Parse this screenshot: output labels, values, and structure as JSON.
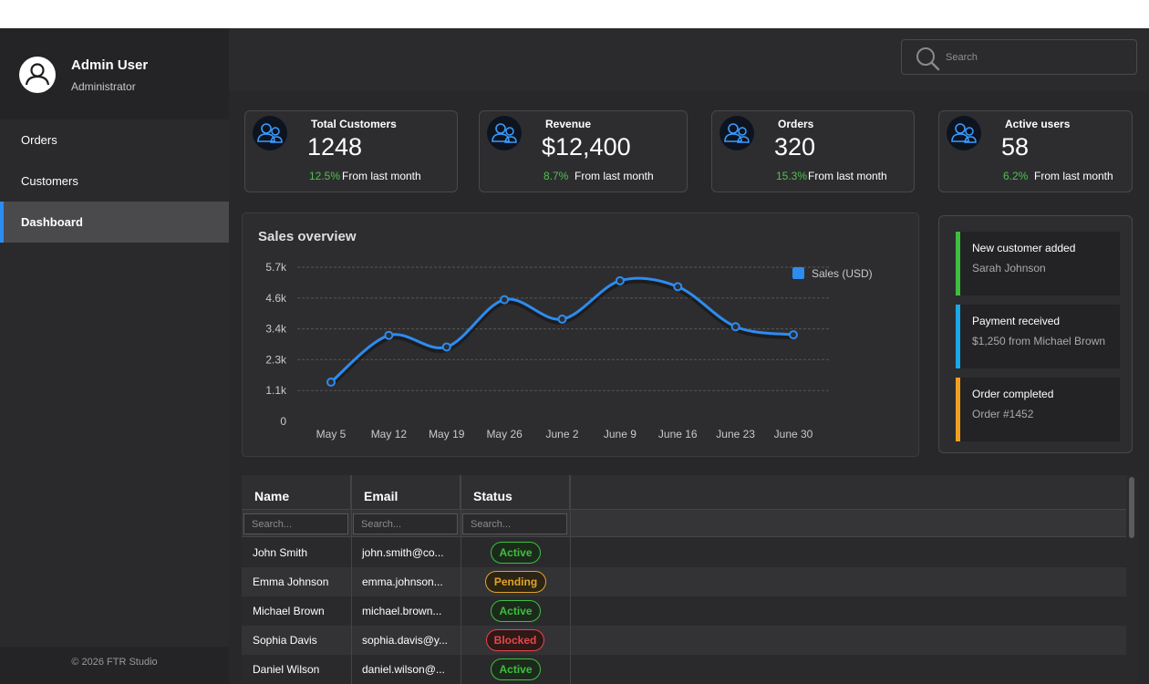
{
  "user": {
    "name": "Admin User",
    "role": "Administrator"
  },
  "nav": [
    {
      "label": "Orders"
    },
    {
      "label": "Customers"
    },
    {
      "label": "Dashboard",
      "active": true
    }
  ],
  "footer": "© 2026 FTR Studio",
  "search": {
    "placeholder": "Search"
  },
  "stats": [
    {
      "title": "Total Customers",
      "value": "1248",
      "change": "12.5%",
      "suffix": "From last month",
      "icon": "users-icon"
    },
    {
      "title": "Revenue",
      "value": "$12,400",
      "change": "8.7%",
      "suffix": "From last month",
      "icon": "users-icon"
    },
    {
      "title": "Orders",
      "value": "320",
      "change": "15.3%",
      "suffix": "From last month",
      "icon": "users-icon"
    },
    {
      "title": "Active users",
      "value": "58",
      "change": "6.2%",
      "suffix": "From last month",
      "icon": "users-icon"
    }
  ],
  "chart_data": {
    "type": "line",
    "title": "Sales overview",
    "categories": [
      "May 5",
      "May 12",
      "May 19",
      "May 26",
      "June 2",
      "June 9",
      "June 16",
      "June 23",
      "June 30"
    ],
    "series": [
      {
        "name": "Sales (USD)",
        "values": [
          1450,
          3180,
          2750,
          4500,
          3780,
          5200,
          4980,
          3500,
          3200
        ],
        "color": "#2d8cf0"
      }
    ],
    "yticks": [
      "0",
      "1.1k",
      "2.3k",
      "3.4k",
      "4.6k",
      "5.7k"
    ],
    "ylim": [
      0,
      5700
    ],
    "grid": true,
    "legend": "top-right"
  },
  "activity": [
    {
      "title": "New customer added",
      "detail": "Sarah Johnson",
      "color": "#3cbf3c"
    },
    {
      "title": "Payment received",
      "detail": "$1,250 from Michael Brown",
      "color": "#1aa9e8"
    },
    {
      "title": "Order completed",
      "detail": "Order #1452",
      "color": "#f0a020"
    }
  ],
  "table": {
    "columns": [
      "Name",
      "Email",
      "Status"
    ],
    "filter_placeholder": "Search...",
    "rows": [
      {
        "name": "John Smith",
        "email": "john.smith@co...",
        "status": "Active"
      },
      {
        "name": "Emma Johnson",
        "email": "emma.johnson...",
        "status": "Pending"
      },
      {
        "name": "Michael Brown",
        "email": "michael.brown...",
        "status": "Active"
      },
      {
        "name": "Sophia Davis",
        "email": "sophia.davis@y...",
        "status": "Blocked"
      },
      {
        "name": "Daniel Wilson",
        "email": "daniel.wilson@...",
        "status": "Active"
      }
    ]
  }
}
